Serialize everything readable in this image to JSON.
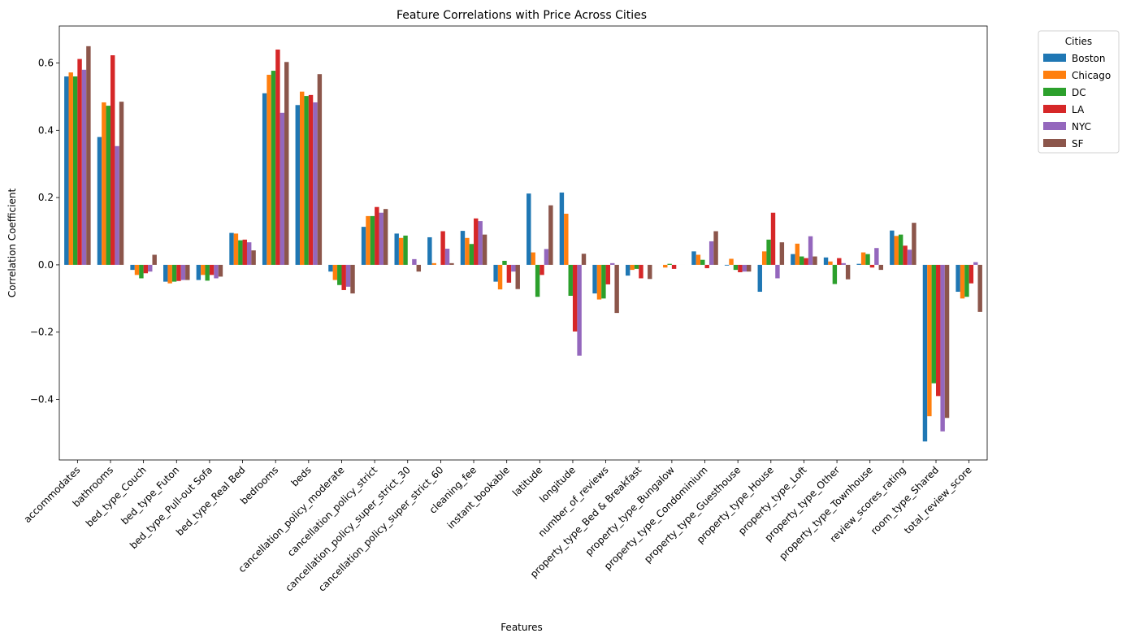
{
  "chart_data": {
    "type": "bar",
    "title": "Feature Correlations with Price Across Cities",
    "xlabel": "Features",
    "ylabel": "Correlation Coefficient",
    "ylim": [
      -0.58,
      0.71
    ],
    "yticks": [
      -0.4,
      -0.2,
      0.0,
      0.2,
      0.4,
      0.6
    ],
    "ytick_labels": [
      "−0.4",
      "−0.2",
      "0.0",
      "0.2",
      "0.4",
      "0.6"
    ],
    "grid": false,
    "legend": {
      "title": "Cities",
      "placement": "outside-upper-right"
    },
    "categories": [
      "accommodates",
      "bathrooms",
      "bed_type_Couch",
      "bed_type_Futon",
      "bed_type_Pull-out Sofa",
      "bed_type_Real Bed",
      "bedrooms",
      "beds",
      "cancellation_policy_moderate",
      "cancellation_policy_strict",
      "cancellation_policy_super_strict_30",
      "cancellation_policy_super_strict_60",
      "cleaning_fee",
      "instant_bookable",
      "latitude",
      "longitude",
      "number_of_reviews",
      "property_type_Bed & Breakfast",
      "property_type_Bungalow",
      "property_type_Condominium",
      "property_type_Guesthouse",
      "property_type_House",
      "property_type_Loft",
      "property_type_Other",
      "property_type_Townhouse",
      "review_scores_rating",
      "room_type_Shared",
      "total_review_score"
    ],
    "series": [
      {
        "name": "Boston",
        "color": "#1f77b4",
        "values": [
          0.56,
          0.38,
          -0.015,
          -0.05,
          -0.045,
          0.095,
          0.51,
          0.475,
          -0.02,
          0.113,
          0.093,
          0.082,
          0.101,
          -0.05,
          0.212,
          0.215,
          -0.085,
          -0.032,
          0.0,
          0.04,
          -0.002,
          -0.08,
          0.032,
          0.022,
          0.003,
          0.102,
          -0.525,
          -0.08
        ]
      },
      {
        "name": "Chicago",
        "color": "#ff7f0e",
        "values": [
          0.572,
          0.483,
          -0.03,
          -0.055,
          -0.03,
          0.093,
          0.565,
          0.515,
          -0.045,
          0.145,
          0.08,
          0.005,
          0.08,
          -0.073,
          0.037,
          0.152,
          -0.103,
          -0.015,
          -0.008,
          0.03,
          0.018,
          0.04,
          0.063,
          0.01,
          0.037,
          0.086,
          -0.45,
          -0.1
        ]
      },
      {
        "name": "DC",
        "color": "#2ca02c",
        "values": [
          0.56,
          0.473,
          -0.04,
          -0.05,
          -0.047,
          0.073,
          0.577,
          0.502,
          -0.06,
          0.145,
          0.087,
          0.0,
          0.062,
          0.012,
          -0.095,
          -0.092,
          -0.1,
          -0.012,
          0.003,
          0.015,
          -0.015,
          0.075,
          0.025,
          -0.057,
          0.032,
          0.09,
          -0.352,
          -0.095
        ]
      },
      {
        "name": "LA",
        "color": "#d62728",
        "values": [
          0.612,
          0.623,
          -0.025,
          -0.048,
          -0.03,
          0.075,
          0.64,
          0.505,
          -0.075,
          0.172,
          0.0,
          0.1,
          0.138,
          -0.053,
          -0.03,
          -0.198,
          -0.058,
          -0.04,
          -0.012,
          -0.01,
          -0.022,
          0.155,
          0.02,
          0.02,
          -0.008,
          0.057,
          -0.39,
          -0.055
        ]
      },
      {
        "name": "NYC",
        "color": "#9467bd",
        "values": [
          0.58,
          0.353,
          -0.02,
          -0.045,
          -0.04,
          0.067,
          0.452,
          0.483,
          -0.065,
          0.155,
          0.017,
          0.048,
          0.13,
          -0.02,
          0.047,
          -0.27,
          0.005,
          0.0,
          0.0,
          0.07,
          -0.02,
          -0.04,
          0.085,
          0.005,
          0.05,
          0.045,
          -0.495,
          0.008
        ]
      },
      {
        "name": "SF",
        "color": "#8c564b",
        "values": [
          0.65,
          0.485,
          0.03,
          -0.045,
          -0.035,
          0.043,
          0.603,
          0.567,
          -0.085,
          0.166,
          -0.02,
          0.005,
          0.09,
          -0.072,
          0.177,
          0.033,
          -0.143,
          -0.042,
          0.0,
          0.1,
          -0.02,
          0.067,
          0.025,
          -0.043,
          -0.015,
          0.125,
          -0.455,
          -0.14
        ]
      }
    ]
  }
}
